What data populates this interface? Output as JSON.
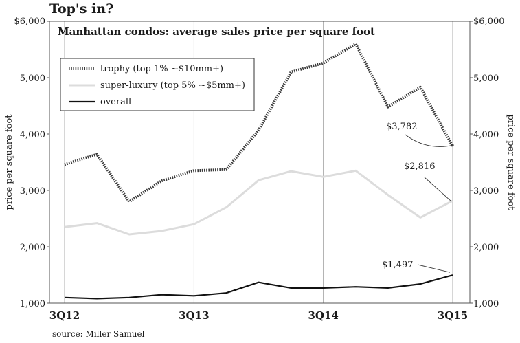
{
  "headline": "Top's in?",
  "source": "source: Miller Samuel",
  "colors": {
    "trophy": "#3a3a3a",
    "super_luxury": "#dcdcdc",
    "overall": "#111111",
    "grid": "#999999",
    "frame": "#555555"
  },
  "chart_data": {
    "type": "line",
    "title": "Manhattan condos: average sales price per square foot",
    "xlabel": "",
    "ylabel": "price per square foot",
    "ylabel_right": "price per square foot",
    "ylim": [
      1000,
      6000
    ],
    "yticks": [
      {
        "value": 1000,
        "label": "1,000"
      },
      {
        "value": 2000,
        "label": "2,000"
      },
      {
        "value": 3000,
        "label": "3,000"
      },
      {
        "value": 4000,
        "label": "4,000"
      },
      {
        "value": 5000,
        "label": "5,000"
      },
      {
        "value": 6000,
        "label": "$6,000"
      }
    ],
    "x": [
      "3Q12",
      "4Q12",
      "1Q13",
      "2Q13",
      "3Q13",
      "4Q13",
      "1Q14",
      "2Q14",
      "3Q14",
      "4Q14",
      "1Q15",
      "2Q15",
      "3Q15"
    ],
    "xticks": [
      {
        "index": 0,
        "label": "3Q12"
      },
      {
        "index": 4,
        "label": "3Q13"
      },
      {
        "index": 8,
        "label": "3Q14"
      },
      {
        "index": 12,
        "label": "3Q15"
      }
    ],
    "grid": true,
    "legend_position": "top-left",
    "series": [
      {
        "key": "trophy",
        "name": "trophy (top 1% ~$10mm+)",
        "style": "dotted",
        "values": [
          3460,
          3640,
          2800,
          3170,
          3350,
          3370,
          4070,
          5100,
          5260,
          5600,
          4480,
          4830,
          3782
        ]
      },
      {
        "key": "super_luxury",
        "name": "super-luxury (top 5% ~$5mm+)",
        "style": "solid-light",
        "values": [
          2350,
          2420,
          2220,
          2280,
          2400,
          2700,
          3180,
          3340,
          3240,
          3350,
          2920,
          2520,
          2816
        ]
      },
      {
        "key": "overall",
        "name": "overall",
        "style": "solid-dark",
        "values": [
          1100,
          1080,
          1100,
          1150,
          1130,
          1180,
          1370,
          1270,
          1270,
          1290,
          1270,
          1340,
          1497
        ]
      }
    ],
    "annotations": [
      {
        "series": "trophy",
        "label": "$3,782"
      },
      {
        "series": "super_luxury",
        "label": "$2,816"
      },
      {
        "series": "overall",
        "label": "$1,497"
      }
    ]
  }
}
